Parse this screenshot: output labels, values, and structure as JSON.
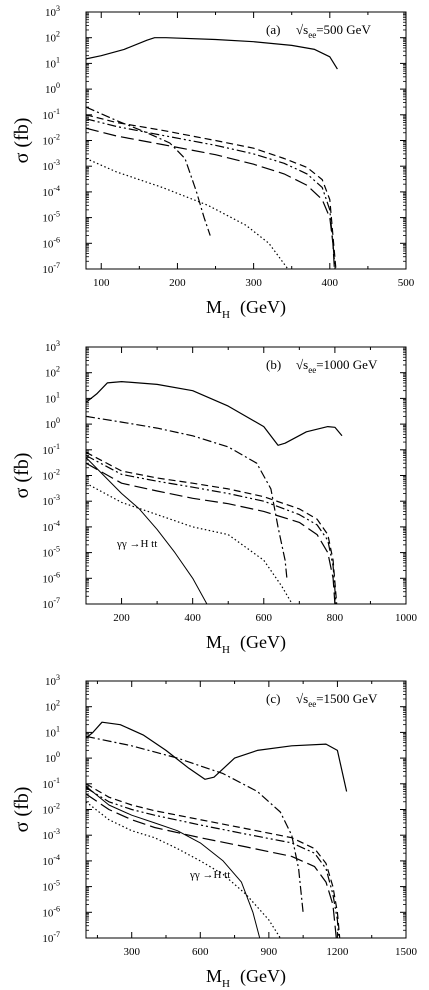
{
  "chart_data": [
    {
      "type": "line",
      "panel": "(a)",
      "energy_label": "√s",
      "energy_sub": "ee",
      "energy_value": "=500 GeV",
      "xlabel_main": "M",
      "xlabel_sub": "H",
      "xlabel_unit": "(GeV)",
      "ylabel": "σ (fb)",
      "xlim": [
        80,
        500
      ],
      "ylim_log10": [
        -7,
        3
      ],
      "log_y": true,
      "xticks": [
        100,
        200,
        300,
        400,
        500
      ],
      "yticks_exp": [
        3,
        2,
        1,
        0,
        -1,
        -2,
        -3,
        -4,
        -5,
        -6,
        -7
      ],
      "series": [
        {
          "style": "solid",
          "points": [
            [
              80,
              15
            ],
            [
              100,
              20
            ],
            [
              130,
              35
            ],
            [
              160,
              80
            ],
            [
              170,
              100
            ],
            [
              185,
              100
            ],
            [
              250,
              85
            ],
            [
              300,
              70
            ],
            [
              350,
              50
            ],
            [
              380,
              35
            ],
            [
              400,
              18
            ],
            [
              410,
              6
            ]
          ]
        },
        {
          "style": "dash",
          "points": [
            [
              80,
              0.1
            ],
            [
              120,
              0.05
            ],
            [
              180,
              0.025
            ],
            [
              250,
              0.01
            ],
            [
              300,
              0.005
            ],
            [
              340,
              0.002
            ],
            [
              370,
              0.0009
            ],
            [
              390,
              0.0003
            ],
            [
              400,
              5e-05
            ],
            [
              405,
              1e-06
            ],
            [
              408,
              1e-07
            ]
          ]
        },
        {
          "style": "dashdotdot",
          "points": [
            [
              80,
              0.07
            ],
            [
              120,
              0.035
            ],
            [
              180,
              0.016
            ],
            [
              250,
              0.0065
            ],
            [
              300,
              0.003
            ],
            [
              340,
              0.0013
            ],
            [
              370,
              0.0005
            ],
            [
              390,
              0.00015
            ],
            [
              400,
              2e-05
            ],
            [
              405,
              5e-07
            ],
            [
              407,
              1e-07
            ]
          ]
        },
        {
          "style": "longdash",
          "points": [
            [
              80,
              0.03
            ],
            [
              120,
              0.015
            ],
            [
              180,
              0.007
            ],
            [
              250,
              0.0028
            ],
            [
              300,
              0.0012
            ],
            [
              340,
              0.0005
            ],
            [
              370,
              0.00018
            ],
            [
              390,
              5e-05
            ],
            [
              400,
              1e-05
            ],
            [
              404,
              1e-06
            ],
            [
              406,
              1e-07
            ]
          ]
        },
        {
          "style": "dashdot",
          "points": [
            [
              80,
              0.2
            ],
            [
              120,
              0.06
            ],
            [
              160,
              0.02
            ],
            [
              190,
              0.008
            ],
            [
              210,
              0.002
            ],
            [
              225,
              0.0001
            ],
            [
              235,
              1e-05
            ],
            [
              243,
              2e-06
            ]
          ]
        },
        {
          "style": "dotted",
          "points": [
            [
              80,
              0.002
            ],
            [
              120,
              0.0006
            ],
            [
              180,
              0.00015
            ],
            [
              240,
              3e-05
            ],
            [
              290,
              5e-06
            ],
            [
              320,
              1e-06
            ],
            [
              345,
              1e-07
            ]
          ]
        }
      ]
    },
    {
      "type": "line",
      "panel": "(b)",
      "energy_label": "√s",
      "energy_sub": "ee",
      "energy_value": "=1000 GeV",
      "xlabel_main": "M",
      "xlabel_sub": "H",
      "xlabel_unit": "(GeV)",
      "ylabel": "σ (fb)",
      "xlim": [
        100,
        1000
      ],
      "ylim_log10": [
        -7,
        3
      ],
      "log_y": true,
      "xticks": [
        200,
        400,
        600,
        800,
        1000
      ],
      "yticks_exp": [
        3,
        2,
        1,
        0,
        -1,
        -2,
        -3,
        -4,
        -5,
        -6,
        -7
      ],
      "annotation": "γγ →H tt",
      "series": [
        {
          "style": "solid",
          "points": [
            [
              100,
              7
            ],
            [
              130,
              15
            ],
            [
              160,
              40
            ],
            [
              200,
              45
            ],
            [
              300,
              35
            ],
            [
              400,
              20
            ],
            [
              500,
              5
            ],
            [
              600,
              0.8
            ],
            [
              640,
              0.15
            ],
            [
              660,
              0.18
            ],
            [
              720,
              0.5
            ],
            [
              780,
              0.8
            ],
            [
              800,
              0.75
            ],
            [
              820,
              0.35
            ]
          ]
        },
        {
          "style": "dashdot",
          "points": [
            [
              100,
              2
            ],
            [
              200,
              1.2
            ],
            [
              300,
              0.7
            ],
            [
              400,
              0.35
            ],
            [
              500,
              0.13
            ],
            [
              580,
              0.03
            ],
            [
              620,
              0.003
            ],
            [
              640,
              0.0001
            ],
            [
              660,
              5e-06
            ],
            [
              665,
              1e-06
            ]
          ]
        },
        {
          "style": "dash",
          "points": [
            [
              100,
              0.08
            ],
            [
              200,
              0.015
            ],
            [
              300,
              0.008
            ],
            [
              400,
              0.005
            ],
            [
              500,
              0.003
            ],
            [
              600,
              0.0015
            ],
            [
              700,
              0.0005
            ],
            [
              750,
              0.0002
            ],
            [
              780,
              5e-05
            ],
            [
              795,
              5e-06
            ],
            [
              805,
              1e-07
            ]
          ]
        },
        {
          "style": "dashdotdot",
          "points": [
            [
              100,
              0.06
            ],
            [
              200,
              0.011
            ],
            [
              300,
              0.006
            ],
            [
              400,
              0.0035
            ],
            [
              500,
              0.002
            ],
            [
              600,
              0.001
            ],
            [
              700,
              0.0003
            ],
            [
              750,
              0.00012
            ],
            [
              780,
              3e-05
            ],
            [
              795,
              3e-06
            ],
            [
              803,
              1e-07
            ]
          ]
        },
        {
          "style": "longdash",
          "points": [
            [
              100,
              0.03
            ],
            [
              200,
              0.005
            ],
            [
              300,
              0.0025
            ],
            [
              400,
              0.0013
            ],
            [
              500,
              0.0008
            ],
            [
              600,
              0.0004
            ],
            [
              700,
              0.00015
            ],
            [
              750,
              5e-05
            ],
            [
              780,
              1e-05
            ],
            [
              795,
              1e-06
            ],
            [
              800,
              1e-07
            ]
          ]
        },
        {
          "style": "dotted",
          "points": [
            [
              100,
              0.005
            ],
            [
              200,
              0.0009
            ],
            [
              300,
              0.0003
            ],
            [
              400,
              0.0001
            ],
            [
              500,
              5e-05
            ],
            [
              600,
              5e-06
            ],
            [
              650,
              5e-07
            ],
            [
              680,
              1e-07
            ]
          ]
        },
        {
          "style": "thin",
          "points": [
            [
              100,
              0.05
            ],
            [
              150,
              0.01
            ],
            [
              200,
              0.002
            ],
            [
              250,
              0.0005
            ],
            [
              300,
              8e-05
            ],
            [
              350,
              1e-05
            ],
            [
              400,
              1e-06
            ],
            [
              440,
              1e-07
            ]
          ]
        }
      ]
    },
    {
      "type": "line",
      "panel": "(c)",
      "energy_label": "√s",
      "energy_sub": "ee",
      "energy_value": "=1500 GeV",
      "xlabel_main": "M",
      "xlabel_sub": "H",
      "xlabel_unit": "(GeV)",
      "ylabel": "σ (fb)",
      "xlim": [
        100,
        1500
      ],
      "ylim_log10": [
        -7,
        3
      ],
      "log_y": true,
      "xticks": [
        300,
        600,
        900,
        1200,
        1500
      ],
      "yticks_exp": [
        3,
        2,
        1,
        0,
        -1,
        -2,
        -3,
        -4,
        -5,
        -6,
        -7
      ],
      "annotation": "γγ →H tt",
      "series": [
        {
          "style": "solid",
          "points": [
            [
              100,
              6
            ],
            [
              130,
              10
            ],
            [
              170,
              25
            ],
            [
              250,
              20
            ],
            [
              350,
              8
            ],
            [
              450,
              2
            ],
            [
              550,
              0.4
            ],
            [
              620,
              0.15
            ],
            [
              660,
              0.18
            ],
            [
              750,
              1
            ],
            [
              850,
              2
            ],
            [
              1000,
              3
            ],
            [
              1150,
              3.5
            ],
            [
              1200,
              2
            ],
            [
              1240,
              0.05
            ]
          ]
        },
        {
          "style": "dashdot",
          "points": [
            [
              100,
              7
            ],
            [
              300,
              3
            ],
            [
              500,
              1
            ],
            [
              700,
              0.25
            ],
            [
              850,
              0.05
            ],
            [
              950,
              0.008
            ],
            [
              1000,
              0.001
            ],
            [
              1030,
              5e-05
            ],
            [
              1050,
              1e-06
            ]
          ]
        },
        {
          "style": "dash",
          "points": [
            [
              100,
              0.1
            ],
            [
              200,
              0.03
            ],
            [
              300,
              0.015
            ],
            [
              400,
              0.009
            ],
            [
              600,
              0.004
            ],
            [
              800,
              0.0018
            ],
            [
              1000,
              0.0008
            ],
            [
              1100,
              0.0003
            ],
            [
              1150,
              8e-05
            ],
            [
              1180,
              1e-05
            ],
            [
              1200,
              1e-06
            ],
            [
              1210,
              1e-07
            ]
          ]
        },
        {
          "style": "dashdotdot",
          "points": [
            [
              100,
              0.07
            ],
            [
              200,
              0.02
            ],
            [
              300,
              0.01
            ],
            [
              400,
              0.006
            ],
            [
              600,
              0.0025
            ],
            [
              800,
              0.0011
            ],
            [
              1000,
              0.0005
            ],
            [
              1100,
              0.0002
            ],
            [
              1150,
              5e-05
            ],
            [
              1180,
              5e-06
            ],
            [
              1200,
              5e-07
            ],
            [
              1205,
              1e-07
            ]
          ]
        },
        {
          "style": "longdash",
          "points": [
            [
              100,
              0.04
            ],
            [
              200,
              0.01
            ],
            [
              300,
              0.004
            ],
            [
              400,
              0.002
            ],
            [
              600,
              0.0008
            ],
            [
              800,
              0.00035
            ],
            [
              1000,
              0.00015
            ],
            [
              1100,
              6e-05
            ],
            [
              1150,
              1.5e-05
            ],
            [
              1180,
              2e-06
            ],
            [
              1195,
              1e-07
            ]
          ]
        },
        {
          "style": "dotted",
          "points": [
            [
              100,
              0.02
            ],
            [
              200,
              0.004
            ],
            [
              300,
              0.0015
            ],
            [
              400,
              0.0008
            ],
            [
              500,
              0.0003
            ],
            [
              600,
              0.0001
            ],
            [
              700,
              3e-05
            ],
            [
              800,
              5e-06
            ],
            [
              900,
              5e-07
            ],
            [
              950,
              1e-07
            ]
          ]
        },
        {
          "style": "thin",
          "points": [
            [
              100,
              0.08
            ],
            [
              200,
              0.015
            ],
            [
              300,
              0.006
            ],
            [
              400,
              0.003
            ],
            [
              500,
              0.0015
            ],
            [
              600,
              0.0005
            ],
            [
              700,
              0.0001
            ],
            [
              780,
              1.5e-05
            ],
            [
              830,
              1e-06
            ],
            [
              860,
              1e-07
            ]
          ]
        }
      ]
    }
  ]
}
